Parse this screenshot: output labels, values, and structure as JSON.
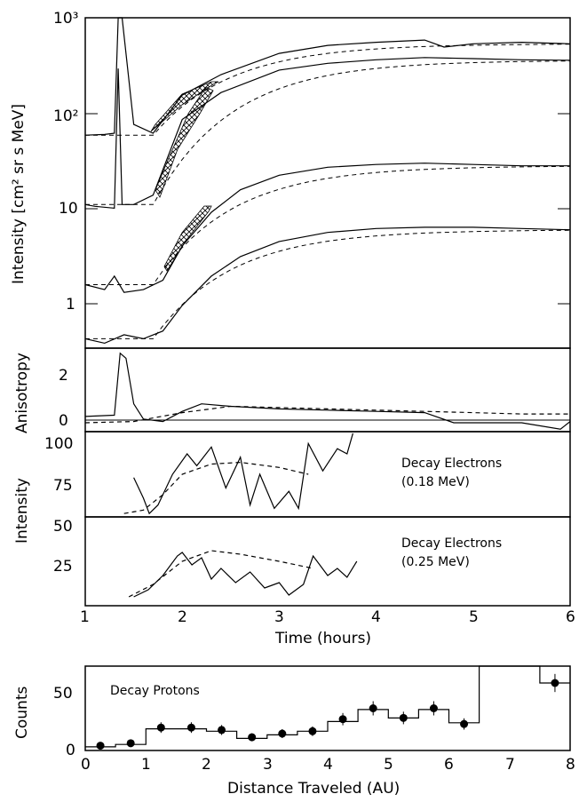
{
  "chart_data": [
    {
      "type": "line",
      "panel": "intensity",
      "yscale": "log",
      "ylabel": "Intensity [cm² sr s MeV]",
      "xlim": [
        1,
        6
      ],
      "ylim": [
        0.4,
        1000
      ],
      "y_ticks": [
        "10³",
        "10²",
        "10",
        "1"
      ],
      "x_ticks": [],
      "grid": false,
      "series": [
        {
          "x": [
            1.0,
            1.2,
            1.3,
            1.34,
            1.38,
            1.5,
            1.7,
            2.0,
            2.4,
            3.0,
            3.5,
            4.0,
            4.5,
            4.7,
            5.0,
            5.5,
            6.0
          ],
          "y": [
            62,
            63,
            65,
            1000,
            1000,
            80,
            65,
            160,
            260,
            430,
            520,
            560,
            590,
            500,
            540,
            560,
            540
          ]
        },
        {
          "x": [
            1.0,
            1.1,
            1.3,
            1.34,
            1.38,
            1.5,
            1.7,
            2.0,
            2.4,
            3.0,
            3.5,
            4.0,
            4.5,
            5.0,
            5.5,
            6.0
          ],
          "y": [
            12,
            11.5,
            11,
            300,
            12,
            12,
            15,
            90,
            170,
            290,
            340,
            370,
            390,
            380,
            370,
            365
          ]
        },
        {
          "x": [
            1.0,
            1.2,
            1.3,
            1.4,
            1.6,
            1.8,
            2.0,
            2.3,
            2.6,
            3.0,
            3.5,
            4.0,
            4.5,
            5.0,
            5.5,
            6.0
          ],
          "y": [
            1.8,
            1.6,
            2.2,
            1.5,
            1.6,
            2.0,
            4.5,
            10,
            17,
            24,
            29,
            31,
            32,
            31,
            30,
            30
          ]
        },
        {
          "x": [
            1.0,
            1.2,
            1.4,
            1.6,
            1.8,
            2.0,
            2.3,
            2.6,
            3.0,
            3.5,
            4.0,
            4.5,
            5.0,
            5.5,
            6.0
          ],
          "y": [
            0.5,
            0.45,
            0.55,
            0.5,
            0.6,
            1.1,
            2.2,
            3.5,
            5.0,
            6.2,
            6.8,
            7.0,
            7.0,
            6.8,
            6.6
          ]
        }
      ]
    },
    {
      "type": "line",
      "panel": "anisotropy",
      "ylabel": "Anisotropy",
      "xlim": [
        1,
        6
      ],
      "ylim": [
        -0.3,
        3
      ],
      "y_ticks": [
        "2",
        "0"
      ],
      "series": [
        {
          "x": [
            1.0,
            1.3,
            1.36,
            1.42,
            1.5,
            1.6,
            1.8,
            2.0,
            2.2,
            2.5,
            3.0,
            3.5,
            4.0,
            4.5,
            4.8,
            5.0,
            5.5,
            5.9,
            6.0
          ],
          "y": [
            0.3,
            0.35,
            2.8,
            2.6,
            0.8,
            0.2,
            0.1,
            0.5,
            0.8,
            0.7,
            0.6,
            0.55,
            0.5,
            0.45,
            0.05,
            0.05,
            0.05,
            -0.2,
            0.1
          ]
        },
        {
          "x": [
            1.0,
            1.5,
            2.0,
            2.5,
            3.0,
            3.5,
            4.0,
            4.5,
            5.0,
            5.5,
            6.0
          ],
          "y": [
            0.05,
            0.1,
            0.45,
            0.7,
            0.65,
            0.6,
            0.55,
            0.5,
            0.45,
            0.4,
            0.4
          ]
        }
      ]
    },
    {
      "type": "line",
      "panel": "decay-electrons-018",
      "ylabel": "Intensity",
      "annotation": [
        "Decay Electrons",
        "(0.18 MeV)"
      ],
      "xlim": [
        1,
        6
      ],
      "ylim": [
        55,
        105
      ],
      "y_ticks": [
        "100",
        "75"
      ],
      "series": [
        {
          "x": [
            1.5,
            1.6,
            1.66,
            1.75,
            1.9,
            2.05,
            2.15,
            2.3,
            2.45,
            2.6,
            2.7,
            2.8,
            2.95,
            3.1,
            3.2,
            3.3,
            3.45,
            3.6,
            3.7,
            3.76
          ],
          "y": [
            78,
            66,
            57,
            62,
            80,
            92,
            85,
            96,
            72,
            90,
            62,
            80,
            60,
            70,
            60,
            98,
            82,
            95,
            92,
            104
          ]
        },
        {
          "x": [
            1.4,
            1.6,
            1.8,
            2.0,
            2.3,
            2.6,
            3.0,
            3.3
          ],
          "y": [
            57,
            59,
            68,
            80,
            86,
            87,
            84,
            80
          ]
        }
      ]
    },
    {
      "type": "line",
      "panel": "decay-electrons-025",
      "annotation": [
        "Decay Electrons",
        "(0.25 MeV)"
      ],
      "xlim": [
        1,
        6
      ],
      "ylim": [
        5,
        55
      ],
      "y_ticks": [
        "50",
        "25"
      ],
      "series": [
        {
          "x": [
            1.5,
            1.65,
            1.8,
            1.95,
            2.0,
            2.1,
            2.2,
            2.3,
            2.4,
            2.55,
            2.7,
            2.85,
            3.0,
            3.1,
            3.25,
            3.35,
            3.5,
            3.6,
            3.7,
            3.8
          ],
          "y": [
            10,
            14,
            22,
            33,
            35,
            28,
            32,
            20,
            26,
            18,
            24,
            15,
            18,
            11,
            17,
            33,
            22,
            26,
            21,
            30
          ]
        },
        {
          "x": [
            1.45,
            1.7,
            2.0,
            2.3,
            2.6,
            3.0,
            3.35
          ],
          "y": [
            10,
            17,
            30,
            36,
            34,
            30,
            26
          ]
        }
      ]
    },
    {
      "x_ticks": [
        "1",
        "2",
        "3",
        "4",
        "5",
        "6"
      ],
      "xlabel": "Time (hours)"
    },
    {
      "type": "bar",
      "panel": "decay-protons",
      "ylabel": "Counts",
      "xlabel": "Distance Traveled  (AU)",
      "annotation": "Decay Protons",
      "xlim": [
        0,
        8
      ],
      "ylim": [
        0,
        70
      ],
      "x_ticks": [
        "0",
        "1",
        "2",
        "3",
        "4",
        "5",
        "6",
        "7",
        "8"
      ],
      "y_ticks": [
        "50",
        "0"
      ],
      "histogram": {
        "edges": [
          0,
          0.5,
          1.0,
          1.5,
          2.0,
          2.5,
          3.0,
          3.5,
          4.0,
          4.5,
          5.0,
          5.5,
          6.0,
          6.5,
          7.0,
          7.5,
          8.0
        ],
        "counts": [
          3,
          5,
          18,
          18,
          16,
          10,
          13,
          16,
          24,
          34,
          27,
          34,
          23,
          72,
          70,
          56
        ]
      },
      "points": {
        "x": [
          0.25,
          0.75,
          1.25,
          1.75,
          2.25,
          2.75,
          3.25,
          3.75,
          4.25,
          4.75,
          5.25,
          5.75,
          6.25,
          7.75
        ],
        "y": [
          4,
          6,
          19,
          19,
          17,
          11,
          14,
          16,
          26,
          35,
          27,
          35,
          22,
          56
        ],
        "err": [
          2,
          2.5,
          4.4,
          4.4,
          4.1,
          3.3,
          3.7,
          4.0,
          5.1,
          5.9,
          5.2,
          5.9,
          4.7,
          7.5
        ]
      }
    }
  ]
}
